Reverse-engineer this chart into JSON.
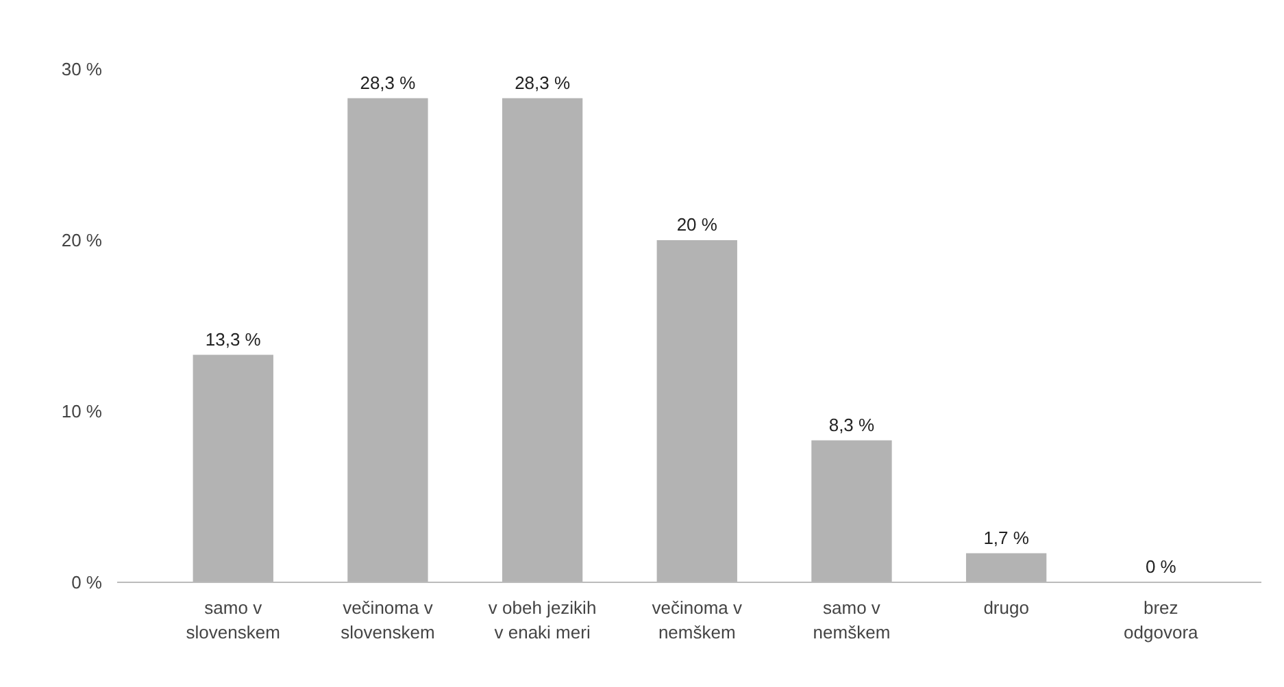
{
  "chart_data": {
    "type": "bar",
    "categories": [
      "samo v\nslovenskem",
      "večinoma v\nslovenskem",
      "v obeh jezikih\nv enaki meri",
      "večinoma v\nnemškem",
      "samo v\nnemškem",
      "drugo",
      "brez\nodgovora"
    ],
    "values": [
      13.3,
      28.3,
      28.3,
      20,
      8.3,
      1.7,
      0
    ],
    "value_labels": [
      "13,3 %",
      "28,3 %",
      "28,3 %",
      "20 %",
      "8,3 %",
      "1,7 %",
      "0 %"
    ],
    "color": "#b3b3b3",
    "ylim": [
      0,
      30
    ],
    "yticks": [
      {
        "value": 0,
        "label": "0 %"
      },
      {
        "value": 10,
        "label": "10 %"
      },
      {
        "value": 20,
        "label": "20 %"
      },
      {
        "value": 30,
        "label": "30 %"
      }
    ],
    "grid": false
  }
}
